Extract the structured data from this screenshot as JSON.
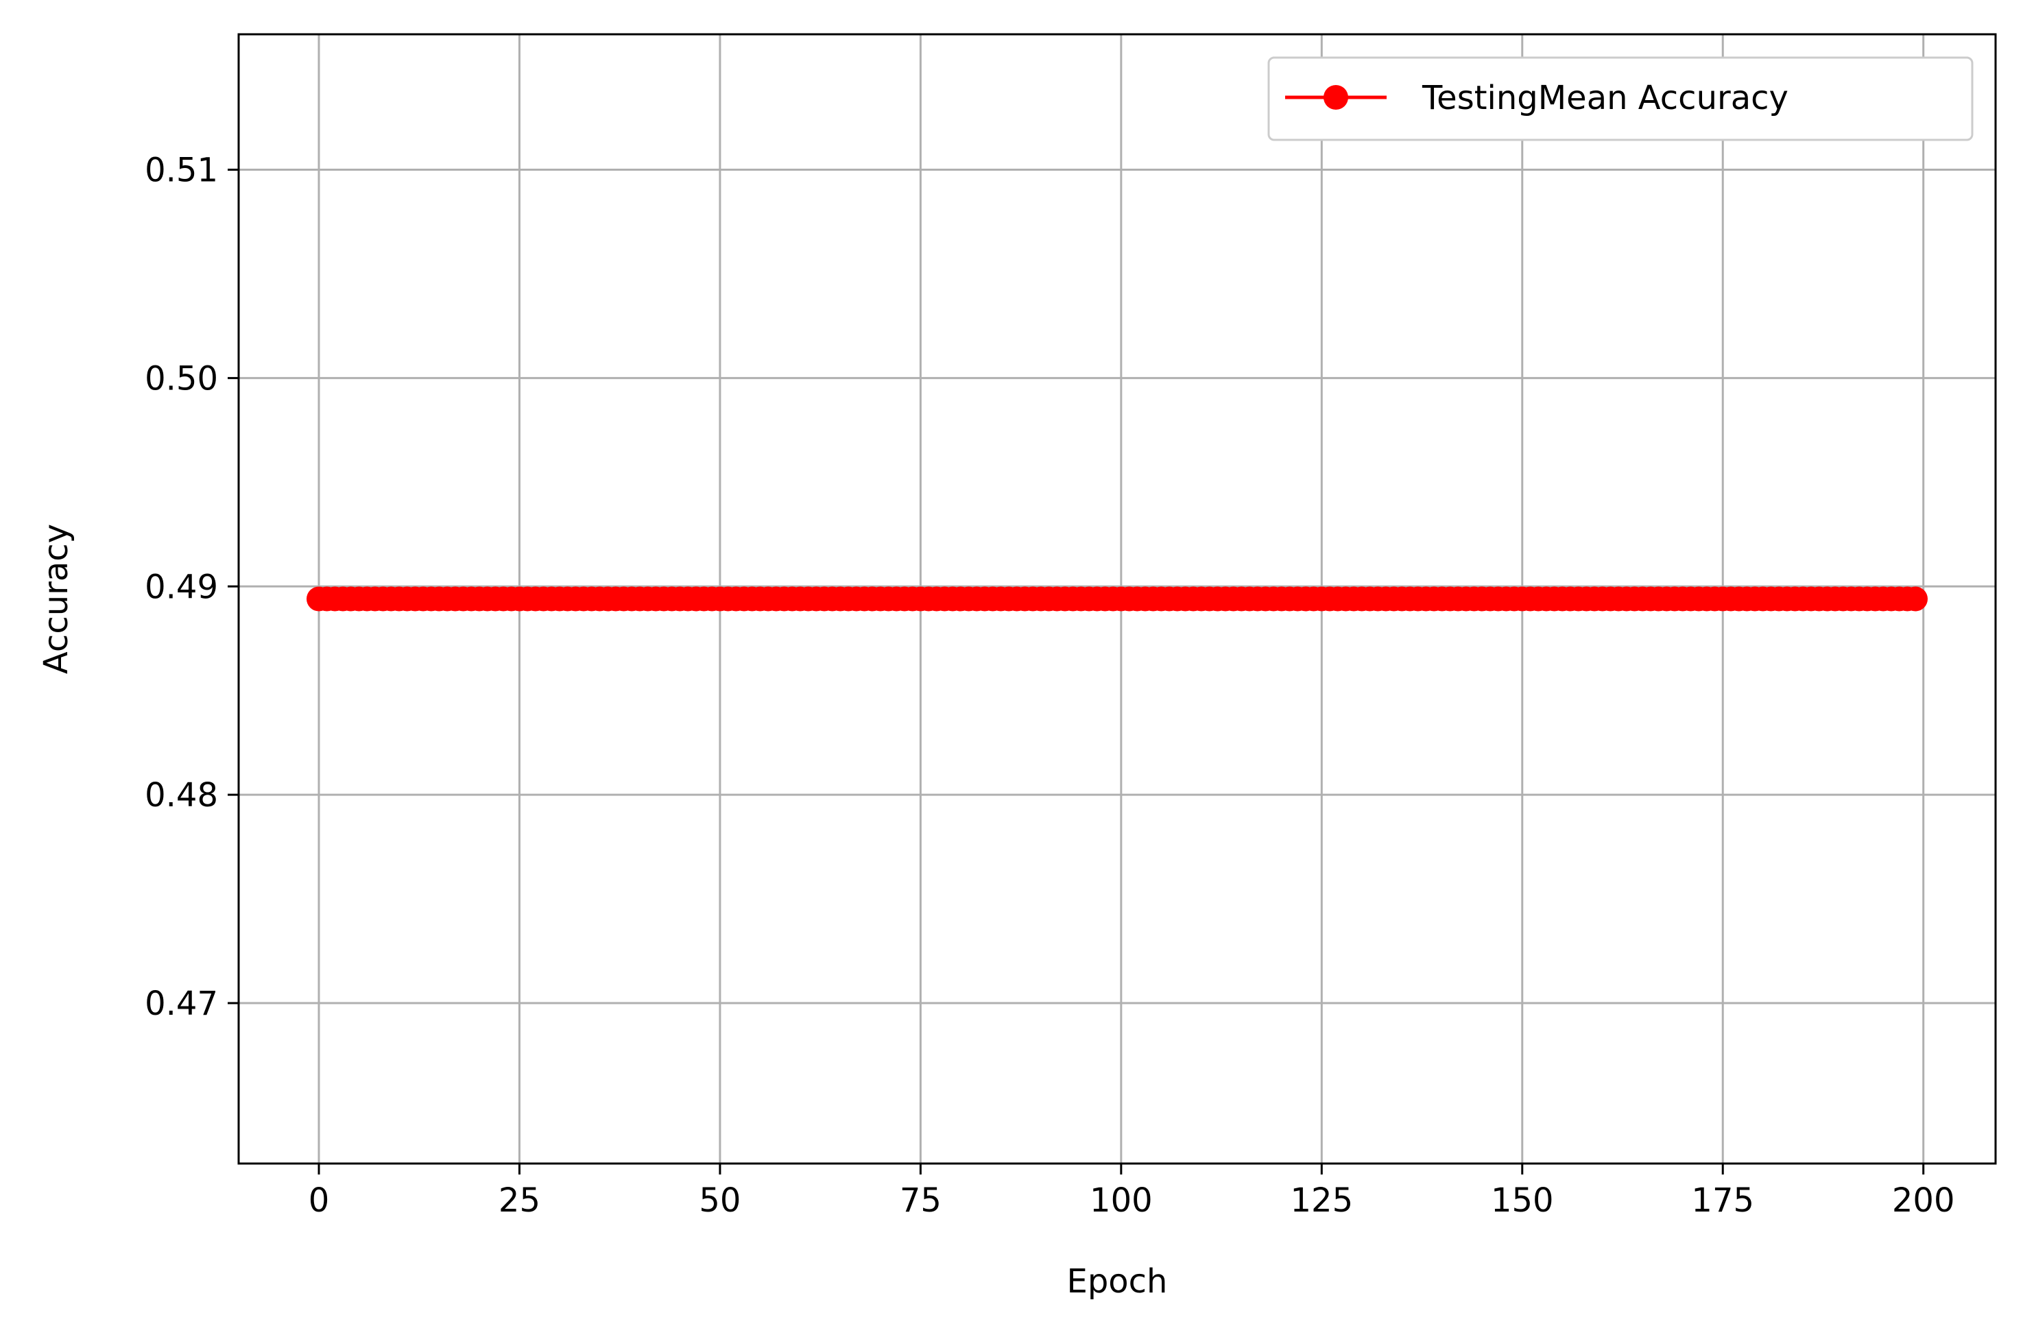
{
  "chart_data": {
    "type": "line",
    "title": "",
    "xlabel": "Epoch",
    "ylabel": "Accuracy",
    "xlim": [
      -10,
      209
    ],
    "ylim": [
      0.4623,
      0.5165
    ],
    "xticks": [
      0,
      25,
      50,
      75,
      100,
      125,
      150,
      175,
      200
    ],
    "xtick_labels": [
      "0",
      "25",
      "50",
      "75",
      "100",
      "125",
      "150",
      "175",
      "200"
    ],
    "yticks": [
      0.47,
      0.48,
      0.49,
      0.5,
      0.51
    ],
    "ytick_labels": [
      "0.47",
      "0.48",
      "0.49",
      "0.50",
      "0.51"
    ],
    "grid": true,
    "legend_position": "top-right",
    "series": [
      {
        "name": "TestingMean Accuracy",
        "color": "#ff0000",
        "marker": "circle",
        "x_start": 0,
        "x_end": 199,
        "x_step": 1,
        "constant_value": 0.4894
      }
    ]
  }
}
